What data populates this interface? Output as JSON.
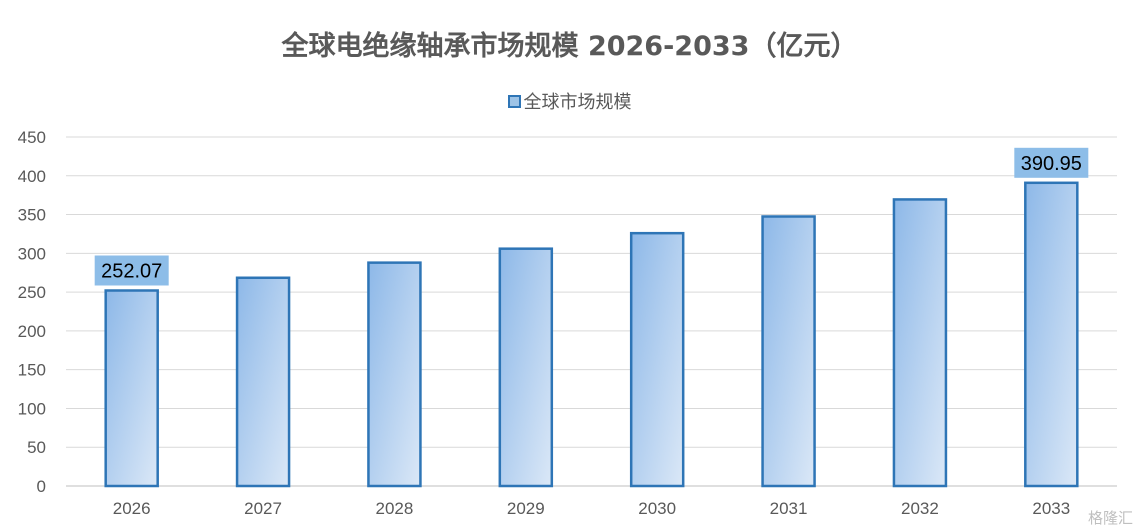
{
  "chart_data": {
    "type": "bar",
    "title": "全球电绝缘轴承市场规模 2026-2033（亿元）",
    "categories": [
      "2026",
      "2027",
      "2028",
      "2029",
      "2030",
      "2031",
      "2032",
      "2033"
    ],
    "series": [
      {
        "name": "全球市场规模",
        "values": [
          252.07,
          268.5,
          288.0,
          306.0,
          326.0,
          347.5,
          369.5,
          390.95
        ]
      }
    ],
    "data_labels": [
      {
        "index": 0,
        "text": "252.07"
      },
      {
        "index": 7,
        "text": "390.95"
      }
    ],
    "yticks": [
      "0",
      "50",
      "100",
      "150",
      "200",
      "250",
      "300",
      "350",
      "400",
      "450"
    ],
    "ylim": [
      0,
      450
    ],
    "grid": true,
    "legend_position": "top",
    "colors": {
      "bar_fill_start": "#8db8e8",
      "bar_fill_end": "#dbe8f7",
      "bar_border": "#2e75b6",
      "label_box": "#8dbde8",
      "grid": "#d9d9d9",
      "text": "#595959"
    }
  },
  "watermark": "格隆汇"
}
